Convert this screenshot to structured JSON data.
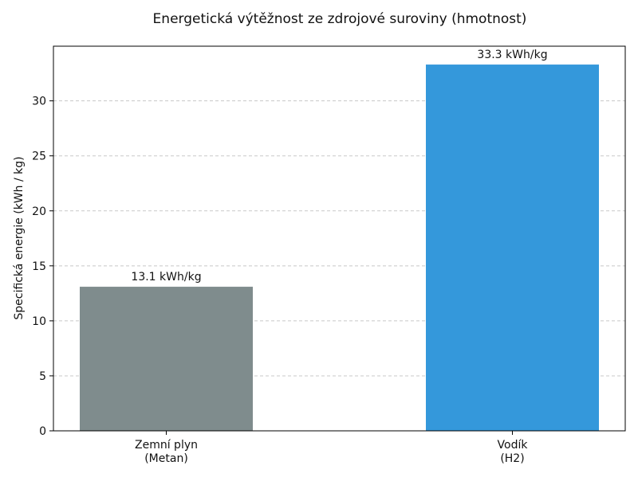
{
  "chart_data": {
    "type": "bar",
    "title": "Energetická výtěžnost ze zdrojové suroviny (hmotnost)",
    "xlabel": "",
    "ylabel": "Specifická energie (kWh / kg)",
    "categories": [
      [
        "Zemní plyn",
        "(Metan)"
      ],
      [
        "Vodík",
        "(H2)"
      ]
    ],
    "values": [
      13.1,
      33.3
    ],
    "data_labels": [
      "13.1 kWh/kg",
      "33.3 kWh/kg"
    ],
    "colors": [
      "#7f8c8d",
      "#3498db"
    ],
    "ylim": [
      0,
      34.97
    ],
    "yticks": [
      0,
      5,
      10,
      15,
      20,
      25,
      30
    ],
    "grid": "y, dashed",
    "legend": "none"
  }
}
